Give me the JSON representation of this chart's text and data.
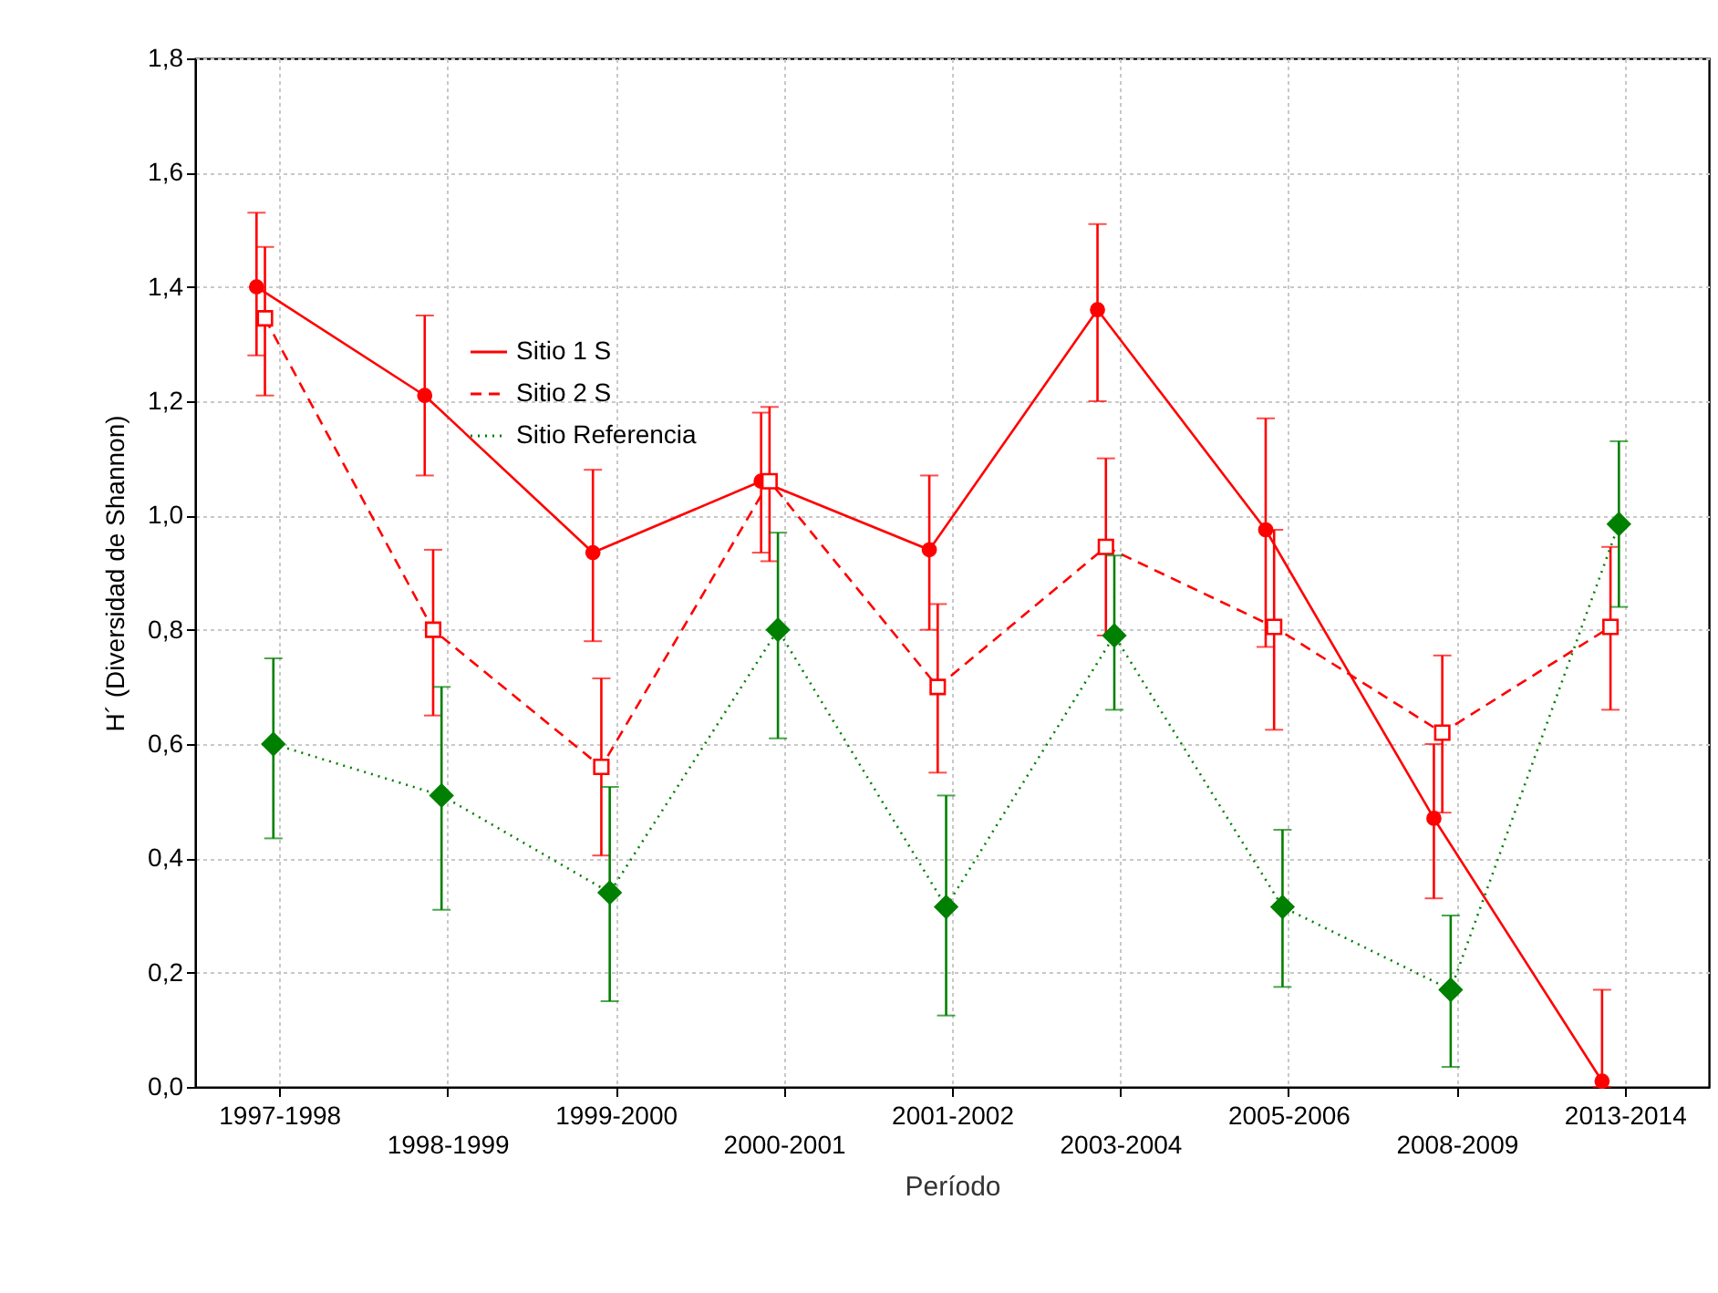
{
  "chart_data": {
    "type": "line",
    "xlabel": "Período",
    "ylabel": "H´ (Diversidad de Shannon)",
    "categories": [
      "1997-1998",
      "1998-1999",
      "1999-2000",
      "2000-2001",
      "2001-2002",
      "2003-2004",
      "2005-2006",
      "2008-2009",
      "2013-2014"
    ],
    "series": [
      {
        "name": "Sitio 1 S",
        "color": "#ff0000",
        "marker": "circle",
        "line_style": "solid",
        "values": [
          1.4,
          1.21,
          0.935,
          1.06,
          0.94,
          1.36,
          0.975,
          0.47,
          0.01
        ],
        "errors": [
          [
            1.28,
            1.53
          ],
          [
            1.07,
            1.35
          ],
          [
            0.78,
            1.08
          ],
          [
            0.935,
            1.18
          ],
          [
            0.8,
            1.07
          ],
          [
            1.2,
            1.51
          ],
          [
            0.77,
            1.17
          ],
          [
            0.33,
            0.6
          ],
          [
            0,
            0.17
          ]
        ]
      },
      {
        "name": "Sitio 2 S",
        "color": "#ff0000",
        "marker": "square",
        "line_style": "dashed",
        "values": [
          1.345,
          0.8,
          0.56,
          1.06,
          0.7,
          0.945,
          0.805,
          0.62,
          0.805
        ],
        "errors": [
          [
            1.21,
            1.47
          ],
          [
            0.65,
            0.94
          ],
          [
            0.405,
            0.715
          ],
          [
            0.92,
            1.19
          ],
          [
            0.55,
            0.845
          ],
          [
            0.79,
            1.1
          ],
          [
            0.625,
            0.975
          ],
          [
            0.48,
            0.755
          ],
          [
            0.66,
            0.945
          ]
        ]
      },
      {
        "name": "Sitio Referencia",
        "color": "#008000",
        "marker": "diamond",
        "line_style": "dotted",
        "values": [
          0.6,
          0.51,
          0.34,
          0.8,
          0.315,
          0.79,
          0.315,
          0.17,
          0.985
        ],
        "errors": [
          [
            0.435,
            0.75
          ],
          [
            0.31,
            0.7
          ],
          [
            0.15,
            0.525
          ],
          [
            0.61,
            0.97
          ],
          [
            0.125,
            0.51
          ],
          [
            0.66,
            0.93
          ],
          [
            0.175,
            0.45
          ],
          [
            0.035,
            0.3
          ],
          [
            0.84,
            1.13
          ]
        ]
      }
    ],
    "ylim": [
      0,
      1.8
    ],
    "yticks": [
      {
        "value": 0,
        "label": "0,0"
      },
      {
        "value": 0.2,
        "label": "0,2"
      },
      {
        "value": 0.4,
        "label": "0,4"
      },
      {
        "value": 0.6,
        "label": "0,6"
      },
      {
        "value": 0.8,
        "label": "0,8"
      },
      {
        "value": 1.0,
        "label": "1,0"
      },
      {
        "value": 1.2,
        "label": "1,2"
      },
      {
        "value": 1.4,
        "label": "1,4"
      },
      {
        "value": 1.6,
        "label": "1,6"
      },
      {
        "value": 1.8,
        "label": "1,8"
      }
    ],
    "grid": true,
    "legend": "top left"
  }
}
